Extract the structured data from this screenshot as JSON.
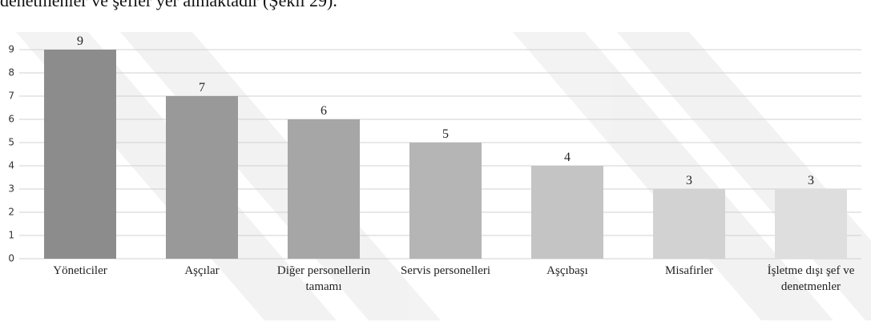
{
  "preceding_text": "denetmenler ve şefler yer almaktadır (Şekil 29).",
  "chart_data": {
    "type": "bar",
    "categories": [
      "Yöneticiler",
      "Aşçılar",
      "Diğer personellerin tamamı",
      "Servis personelleri",
      "Aşçıbaşı",
      "Misafirler",
      "İşletme dışı şef ve denetmenler"
    ],
    "values": [
      9,
      7,
      6,
      5,
      4,
      3,
      3
    ],
    "colors": [
      "#8c8c8c",
      "#999999",
      "#a6a6a6",
      "#b5b5b5",
      "#c4c4c4",
      "#d2d2d2",
      "#dedede"
    ],
    "ylim": [
      0,
      9
    ],
    "yticks": [
      0,
      1,
      2,
      3,
      4,
      5,
      6,
      7,
      8,
      9
    ],
    "grid": true
  }
}
